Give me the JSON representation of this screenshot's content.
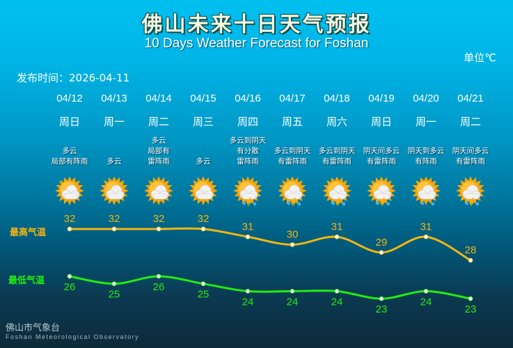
{
  "header": {
    "title": "佛山未来十日天气预报",
    "subtitle": "10 Days Weather Forecast for Foshan",
    "unit": "单位℃",
    "publish_time": "发布时间：2026-04-11"
  },
  "footer": {
    "org_cn": "佛山市气象台",
    "org_en": "Foshan Meteorological Observatory"
  },
  "days": [
    {
      "date": "04/12",
      "weekday": "周日",
      "desc": [
        "多云",
        "局部有阵雨"
      ],
      "icon": "sun-cloud-icon"
    },
    {
      "date": "04/13",
      "weekday": "周一",
      "desc": [
        "多云"
      ],
      "icon": "sun-cloud-icon"
    },
    {
      "date": "04/14",
      "weekday": "周二",
      "desc": [
        "多云",
        "局部有",
        "雷阵雨"
      ],
      "icon": "sun-cloud-icon"
    },
    {
      "date": "04/15",
      "weekday": "周三",
      "desc": [
        "多云"
      ],
      "icon": "sun-cloud-icon"
    },
    {
      "date": "04/16",
      "weekday": "周四",
      "desc": [
        "多云到阴天",
        "有分散",
        "雷阵雨"
      ],
      "icon": "thunderstorm-icon"
    },
    {
      "date": "04/17",
      "weekday": "周五",
      "desc": [
        "多云到阴天",
        "有雷阵雨"
      ],
      "icon": "thunderstorm-icon"
    },
    {
      "date": "04/18",
      "weekday": "周六",
      "desc": [
        "多云到阴天",
        "有雷阵雨"
      ],
      "icon": "thunderstorm-icon"
    },
    {
      "date": "04/19",
      "weekday": "周日",
      "desc": [
        "阴天间多云",
        "有雷阵雨"
      ],
      "icon": "thunderstorm-icon"
    },
    {
      "date": "04/20",
      "weekday": "周一",
      "desc": [
        "阴天到多云",
        "有阵雨"
      ],
      "icon": "shower-icon"
    },
    {
      "date": "04/21",
      "weekday": "周二",
      "desc": [
        "阴天间多云",
        "有雷阵雨"
      ],
      "icon": "thunderstorm-icon"
    }
  ],
  "chart_data": {
    "type": "line",
    "categories": [
      "04/12",
      "04/13",
      "04/14",
      "04/15",
      "04/16",
      "04/17",
      "04/18",
      "04/19",
      "04/20",
      "04/21"
    ],
    "series": [
      {
        "name": "最高气温",
        "values": [
          32,
          32,
          32,
          32,
          31,
          30,
          31,
          29,
          31,
          28
        ],
        "color": "#f5b50f",
        "label_position": "above"
      },
      {
        "name": "最低气温",
        "values": [
          26,
          25,
          26,
          25,
          24,
          24,
          24,
          23,
          24,
          23
        ],
        "color": "#22ee10",
        "label_position": "below"
      }
    ],
    "grid": false,
    "axes": false
  }
}
